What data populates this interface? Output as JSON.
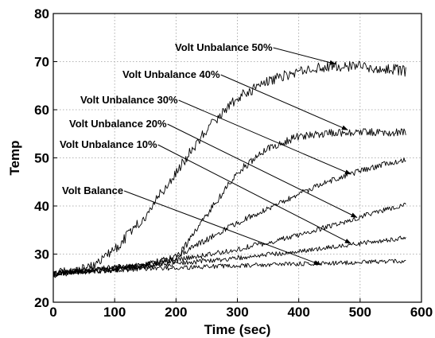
{
  "chart_data": {
    "type": "line",
    "xlabel": "Time (sec)",
    "ylabel": "Temp",
    "xlim": [
      0,
      600
    ],
    "ylim": [
      20,
      80
    ],
    "xticks": [
      0,
      100,
      200,
      300,
      400,
      500,
      600
    ],
    "yticks": [
      20,
      30,
      40,
      50,
      60,
      70,
      80
    ],
    "grid": true,
    "line_color": "#000000",
    "series": [
      {
        "name": "Volt Balance",
        "x": [
          0,
          50,
          100,
          150,
          200,
          250,
          300,
          350,
          400,
          450,
          500,
          550,
          575
        ],
        "y": [
          26,
          26.3,
          26.6,
          26.9,
          27.1,
          27.4,
          27.6,
          27.8,
          28,
          28.1,
          28.3,
          28.5,
          28.5
        ]
      },
      {
        "name": "Volt Unbalance 10%",
        "x": [
          0,
          50,
          100,
          150,
          200,
          250,
          300,
          350,
          400,
          450,
          500,
          550,
          575
        ],
        "y": [
          26,
          26.5,
          27,
          27.5,
          28,
          28.6,
          29.2,
          29.9,
          30.6,
          31.4,
          32.2,
          33,
          33.5
        ]
      },
      {
        "name": "Volt Unbalance 20%",
        "x": [
          0,
          50,
          100,
          150,
          200,
          250,
          300,
          350,
          400,
          450,
          500,
          550,
          575
        ],
        "y": [
          26,
          26.5,
          27,
          27.8,
          28.7,
          29.8,
          31,
          32.4,
          34,
          35.8,
          37.7,
          39.6,
          40.5
        ]
      },
      {
        "name": "Volt Unbalance 30%",
        "x": [
          0,
          50,
          100,
          150,
          200,
          250,
          300,
          350,
          400,
          450,
          500,
          550,
          575
        ],
        "y": [
          26,
          26.5,
          27,
          27.8,
          29.5,
          33,
          36.5,
          39.5,
          42.5,
          45.2,
          47.3,
          49,
          49.8
        ]
      },
      {
        "name": "Volt Unbalance 40%",
        "x": [
          0,
          50,
          100,
          150,
          200,
          250,
          300,
          350,
          400,
          450,
          500,
          550,
          575
        ],
        "y": [
          26,
          26.5,
          27,
          27.5,
          29,
          38,
          47,
          52,
          54.5,
          55.2,
          55.3,
          55.3,
          55.5
        ]
      },
      {
        "name": "Volt Unbalance 50%",
        "x": [
          0,
          50,
          75,
          100,
          150,
          200,
          250,
          300,
          350,
          400,
          450,
          500,
          550,
          575
        ],
        "y": [
          26,
          27,
          28.5,
          31,
          38,
          47,
          56,
          62.5,
          66,
          68,
          69,
          69,
          68.5,
          68
        ]
      }
    ],
    "annotations": [
      {
        "text": "Volt Unbalance 50%",
        "series": "Volt Unbalance 50%",
        "arrow_to": [
          460,
          69.5
        ]
      },
      {
        "text": "Volt Unbalance 40%",
        "series": "Volt Unbalance 40%",
        "arrow_to": [
          480,
          55.8
        ]
      },
      {
        "text": "Volt Unbalance 30%",
        "series": "Volt Unbalance 30%",
        "arrow_to": [
          485,
          46.6
        ]
      },
      {
        "text": "Volt Unbalance 20%",
        "series": "Volt Unbalance 20%",
        "arrow_to": [
          495,
          37.6
        ]
      },
      {
        "text": "Volt Unbalance 10%",
        "series": "Volt Unbalance 10%",
        "arrow_to": [
          485,
          32.2
        ]
      },
      {
        "text": "Volt Balance",
        "series": "Volt Balance",
        "arrow_to": [
          435,
          27.8
        ]
      }
    ]
  }
}
